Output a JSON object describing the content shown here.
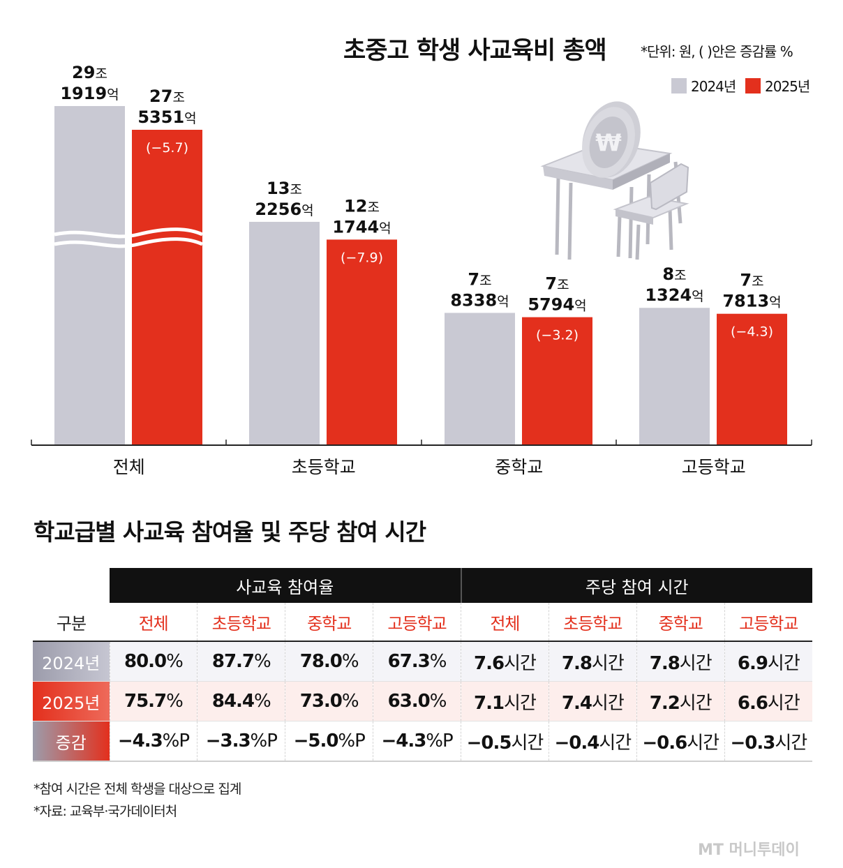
{
  "title": "초중고 학생 사교육비 총액",
  "unit_note": "*단위: 원, ( )안은 증감률 %",
  "colors": {
    "y2024": "#c9c9d3",
    "y2025": "#e3301d",
    "text": "#111111"
  },
  "chart_data": {
    "type": "bar",
    "title": "초중고 학생 사교육비 총액",
    "unit": "원",
    "categories": [
      "전체",
      "초등학교",
      "중학교",
      "고등학교"
    ],
    "axis_break_on": "전체",
    "series": [
      {
        "name": "2024년",
        "values_eok": [
          291919,
          132256,
          78338,
          81324
        ],
        "labels": [
          [
            "29",
            "조",
            "1919",
            "억"
          ],
          [
            "13",
            "조",
            "2256",
            "억"
          ],
          [
            "7",
            "조",
            "8338",
            "억"
          ],
          [
            "8",
            "조",
            "1324",
            "억"
          ]
        ]
      },
      {
        "name": "2025년",
        "values_eok": [
          275351,
          121744,
          75794,
          77813
        ],
        "labels": [
          [
            "27",
            "조",
            "5351",
            "억"
          ],
          [
            "12",
            "조",
            "1744",
            "억"
          ],
          [
            "7",
            "조",
            "5794",
            "억"
          ],
          [
            "7",
            "조",
            "7813",
            "억"
          ]
        ],
        "change_pct": [
          "(−5.7)",
          "(−7.9)",
          "(−3.2)",
          "(−4.3)"
        ]
      }
    ]
  },
  "legend": [
    {
      "label": "2024년"
    },
    {
      "label": "2025년"
    }
  ],
  "table": {
    "title": "학교급별 사교육 참여율 및 주당 참여 시간",
    "group_headers": [
      "사교육 참여율",
      "주당 참여 시간"
    ],
    "corner": "구분",
    "columns": [
      "전체",
      "초등학교",
      "중학교",
      "고등학교",
      "전체",
      "초등학교",
      "중학교",
      "고등학교"
    ],
    "rows": [
      {
        "label": "2024년",
        "cells": [
          [
            "80.0",
            "%"
          ],
          [
            "87.7",
            "%"
          ],
          [
            "78.0",
            "%"
          ],
          [
            "67.3",
            "%"
          ],
          [
            "7.6",
            "시간"
          ],
          [
            "7.8",
            "시간"
          ],
          [
            "7.8",
            "시간"
          ],
          [
            "6.9",
            "시간"
          ]
        ]
      },
      {
        "label": "2025년",
        "cells": [
          [
            "75.7",
            "%"
          ],
          [
            "84.4",
            "%"
          ],
          [
            "73.0",
            "%"
          ],
          [
            "63.0",
            "%"
          ],
          [
            "7.1",
            "시간"
          ],
          [
            "7.4",
            "시간"
          ],
          [
            "7.2",
            "시간"
          ],
          [
            "6.6",
            "시간"
          ]
        ]
      },
      {
        "label": "증감",
        "cells": [
          [
            "−4.3",
            "%P"
          ],
          [
            "−3.3",
            "%P"
          ],
          [
            "−5.0",
            "%P"
          ],
          [
            "−4.3",
            "%P"
          ],
          [
            "−0.5",
            "시간"
          ],
          [
            "−0.4",
            "시간"
          ],
          [
            "−0.6",
            "시간"
          ],
          [
            "−0.3",
            "시간"
          ]
        ]
      }
    ]
  },
  "footnotes": [
    "*참여 시간은 전체 학생을 대상으로 집계",
    "*자료: 교육부·국가데이터처"
  ],
  "watermark": "MT 머니투데이",
  "illustration_icon": "desk-coin-icon",
  "coin_symbol": "₩"
}
